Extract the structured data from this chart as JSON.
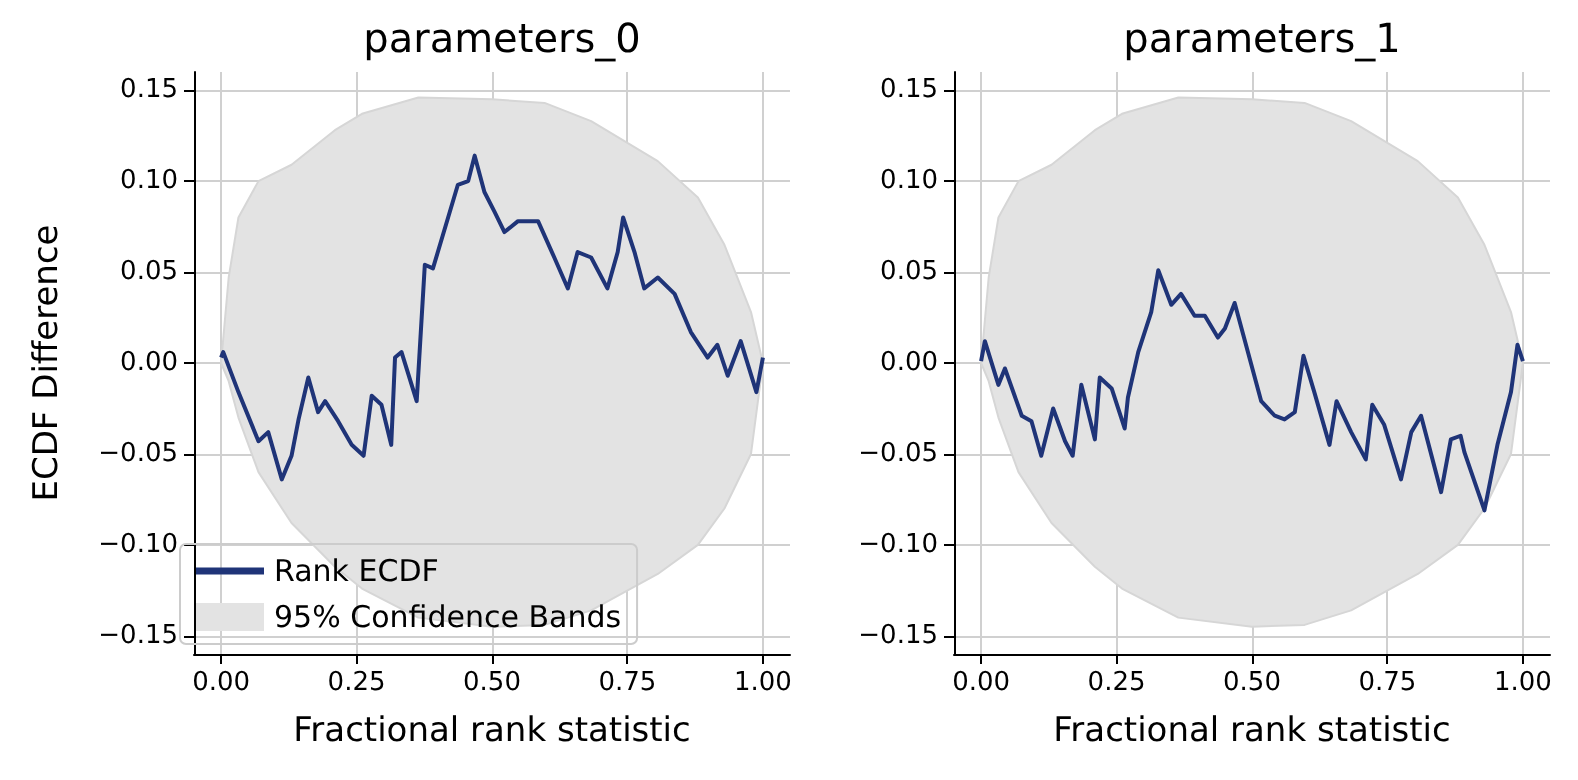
{
  "chart_data": [
    {
      "type": "line",
      "title": "parameters_0",
      "xlabel": "Fractional rank statistic",
      "ylabel": "ECDF Difference",
      "xlim": [
        -0.05,
        1.05
      ],
      "xticks": [
        {
          "value": 0,
          "label": "0.00"
        },
        {
          "value": 0.25,
          "label": "0.25"
        },
        {
          "value": 0.5,
          "label": "0.50"
        },
        {
          "value": 0.75,
          "label": "0.75"
        },
        {
          "value": 1,
          "label": "1.00"
        }
      ],
      "ylim": [
        -0.16,
        0.16
      ],
      "yticks": [
        {
          "value": -0.15,
          "label": "−0.15"
        },
        {
          "value": -0.1,
          "label": "−0.10"
        },
        {
          "value": -0.05,
          "label": "−0.05"
        },
        {
          "value": 0,
          "label": "0.00"
        },
        {
          "value": 0.05,
          "label": "0.05"
        },
        {
          "value": 0.1,
          "label": "0.10"
        },
        {
          "value": 0.15,
          "label": "0.15"
        }
      ],
      "grid": true,
      "legend": "bottom left",
      "marker": "none",
      "line_style": "solid",
      "series": [
        {
          "name": "Rank ECDF",
          "color": "#1f3478",
          "x": [
            0,
            0.004,
            0.032,
            0.069,
            0.087,
            0.112,
            0.13,
            0.143,
            0.161,
            0.179,
            0.192,
            0.216,
            0.241,
            0.263,
            0.278,
            0.296,
            0.314,
            0.321,
            0.333,
            0.361,
            0.376,
            0.391,
            0.419,
            0.437,
            0.456,
            0.468,
            0.486,
            0.505,
            0.523,
            0.548,
            0.585,
            0.615,
            0.64,
            0.658,
            0.683,
            0.713,
            0.732,
            0.742,
            0.763,
            0.781,
            0.806,
            0.837,
            0.867,
            0.898,
            0.916,
            0.935,
            0.959,
            0.988,
            1.0
          ],
          "values": [
            0.003,
            0.006,
            -0.016,
            -0.043,
            -0.038,
            -0.064,
            -0.051,
            -0.031,
            -0.008,
            -0.027,
            -0.021,
            -0.032,
            -0.045,
            -0.051,
            -0.018,
            -0.023,
            -0.045,
            0.003,
            0.006,
            -0.021,
            0.054,
            0.052,
            0.08,
            0.098,
            0.1,
            0.114,
            0.094,
            0.083,
            0.072,
            0.078,
            0.078,
            0.058,
            0.041,
            0.061,
            0.058,
            0.041,
            0.061,
            0.08,
            0.061,
            0.041,
            0.047,
            0.038,
            0.017,
            0.003,
            0.01,
            -0.007,
            0.012,
            -0.016,
            0.003
          ]
        },
        {
          "type": "area",
          "name": "95% Confidence Bands",
          "color": "#e3e3e3",
          "x": [
            0,
            0.014,
            0.032,
            0.069,
            0.13,
            0.21,
            0.26,
            0.364,
            0.5,
            0.597,
            0.683,
            0.806,
            0.88,
            0.929,
            0.978,
            1
          ],
          "values": [
            0,
            0.047,
            0.08,
            0.1,
            0.109,
            0.128,
            0.137,
            0.146,
            0.145,
            0.143,
            0.133,
            0.111,
            0.091,
            0.065,
            0.028,
            0
          ]
        },
        {
          "type": "area",
          "color": "#e3e3e3",
          "x": [
            0,
            0.014,
            0.032,
            0.069,
            0.13,
            0.21,
            0.26,
            0.364,
            0.5,
            0.597,
            0.683,
            0.806,
            0.88,
            0.929,
            0.978,
            1
          ],
          "values": [
            0,
            -0.01,
            -0.03,
            -0.06,
            -0.088,
            -0.112,
            -0.124,
            -0.14,
            -0.145,
            -0.144,
            -0.136,
            -0.116,
            -0.1,
            -0.08,
            -0.05,
            0
          ]
        }
      ]
    },
    {
      "type": "line",
      "title": "parameters_1",
      "xlabel": "Fractional rank statistic",
      "xlim": [
        -0.05,
        1.05
      ],
      "xticks": [
        {
          "value": 0,
          "label": "0.00"
        },
        {
          "value": 0.25,
          "label": "0.25"
        },
        {
          "value": 0.5,
          "label": "0.50"
        },
        {
          "value": 0.75,
          "label": "0.75"
        },
        {
          "value": 1,
          "label": "1.00"
        }
      ],
      "ylim": [
        -0.16,
        0.16
      ],
      "yticks": [
        {
          "value": -0.15,
          "label": "−0.15"
        },
        {
          "value": -0.1,
          "label": "−0.10"
        },
        {
          "value": -0.05,
          "label": "−0.05"
        },
        {
          "value": 0,
          "label": "0.00"
        },
        {
          "value": 0.05,
          "label": "0.05"
        },
        {
          "value": 0.1,
          "label": "0.10"
        },
        {
          "value": 0.15,
          "label": "0.15"
        }
      ],
      "grid": true,
      "marker": "none",
      "line_style": "solid",
      "series": [
        {
          "color": "#1f3478",
          "x": [
            0,
            0.007,
            0.032,
            0.044,
            0.075,
            0.093,
            0.111,
            0.133,
            0.155,
            0.169,
            0.185,
            0.21,
            0.219,
            0.241,
            0.265,
            0.271,
            0.29,
            0.314,
            0.327,
            0.351,
            0.369,
            0.394,
            0.413,
            0.437,
            0.45,
            0.468,
            0.517,
            0.542,
            0.56,
            0.579,
            0.595,
            0.615,
            0.643,
            0.656,
            0.683,
            0.71,
            0.722,
            0.744,
            0.775,
            0.794,
            0.812,
            0.849,
            0.867,
            0.885,
            0.892,
            0.929,
            0.953,
            0.978,
            0.99,
            1.0
          ],
          "values": [
            0.001,
            0.012,
            -0.012,
            -0.003,
            -0.029,
            -0.032,
            -0.051,
            -0.025,
            -0.043,
            -0.051,
            -0.012,
            -0.042,
            -0.008,
            -0.014,
            -0.036,
            -0.019,
            0.006,
            0.028,
            0.051,
            0.032,
            0.038,
            0.026,
            0.026,
            0.014,
            0.019,
            0.033,
            -0.021,
            -0.029,
            -0.031,
            -0.027,
            0.004,
            -0.016,
            -0.045,
            -0.021,
            -0.038,
            -0.053,
            -0.023,
            -0.034,
            -0.064,
            -0.038,
            -0.029,
            -0.071,
            -0.042,
            -0.04,
            -0.049,
            -0.081,
            -0.045,
            -0.016,
            0.01,
            0.001
          ]
        },
        {
          "type": "area",
          "color": "#e3e3e3",
          "x": [
            0,
            0.014,
            0.032,
            0.069,
            0.13,
            0.21,
            0.26,
            0.364,
            0.5,
            0.597,
            0.683,
            0.806,
            0.88,
            0.929,
            0.978,
            1
          ],
          "values": [
            0,
            0.047,
            0.08,
            0.1,
            0.109,
            0.128,
            0.137,
            0.146,
            0.145,
            0.143,
            0.133,
            0.111,
            0.091,
            0.065,
            0.028,
            0
          ]
        },
        {
          "type": "area",
          "color": "#e3e3e3",
          "x": [
            0,
            0.014,
            0.032,
            0.069,
            0.13,
            0.21,
            0.26,
            0.364,
            0.5,
            0.597,
            0.683,
            0.806,
            0.88,
            0.929,
            0.978,
            1
          ],
          "values": [
            0,
            -0.01,
            -0.03,
            -0.06,
            -0.088,
            -0.112,
            -0.124,
            -0.14,
            -0.145,
            -0.144,
            -0.136,
            -0.116,
            -0.1,
            -0.08,
            -0.05,
            0
          ]
        }
      ]
    }
  ]
}
